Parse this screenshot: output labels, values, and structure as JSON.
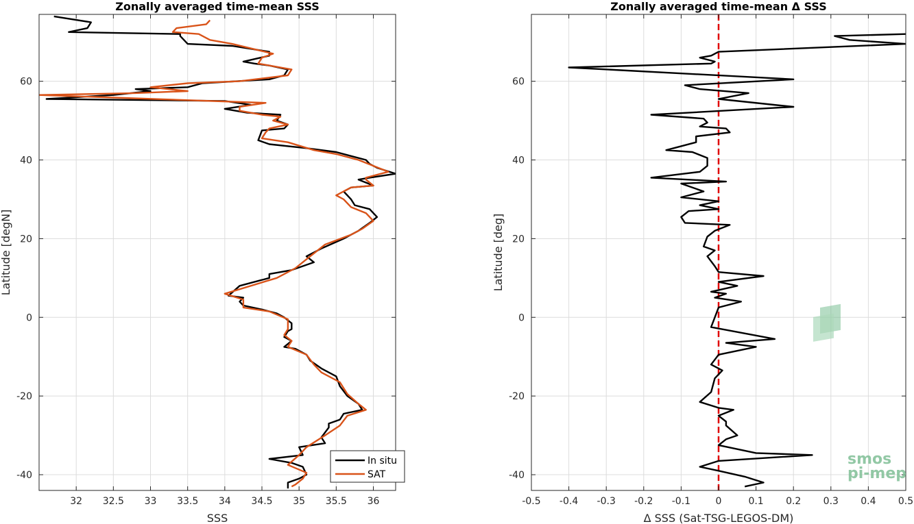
{
  "chart_data": [
    {
      "type": "line",
      "title": "Zonally averaged time-mean SSS",
      "xlabel": "SSS",
      "ylabel": "Latitude [degN]",
      "xlim": [
        31.5,
        36.3
      ],
      "ylim": [
        -44,
        77
      ],
      "xticks": [
        32,
        32.5,
        33,
        33.5,
        34,
        34.5,
        35,
        35.5,
        36
      ],
      "xtick_labels": [
        "32",
        "32.5",
        "33",
        "33.5",
        "34",
        "34.5",
        "35",
        "35.5",
        "36"
      ],
      "yticks": [
        -40,
        -20,
        0,
        20,
        40,
        60
      ],
      "ytick_labels": [
        "-40",
        "-20",
        "0",
        "20",
        "40",
        "60"
      ],
      "grid": true,
      "legend_position": "bottom-right",
      "series": [
        {
          "name": "In situ",
          "color": "#000000",
          "points": [
            [
              31.7,
              76.5
            ],
            [
              32.2,
              75
            ],
            [
              32.15,
              73.5
            ],
            [
              31.9,
              72.5
            ],
            [
              33.4,
              72
            ],
            [
              33.4,
              71.5
            ],
            [
              33.5,
              69.5
            ],
            [
              34.1,
              69
            ],
            [
              34.6,
              67.5
            ],
            [
              34.6,
              66.5
            ],
            [
              34.25,
              65
            ],
            [
              34.4,
              64.5
            ],
            [
              34.6,
              64
            ],
            [
              34.85,
              63
            ],
            [
              34.8,
              61.5
            ],
            [
              34.6,
              60.5
            ],
            [
              33.7,
              59.5
            ],
            [
              33.5,
              58.5
            ],
            [
              32.8,
              58
            ],
            [
              33,
              57.5
            ],
            [
              32.5,
              56.5
            ],
            [
              31.6,
              55.5
            ],
            [
              34.0,
              55
            ],
            [
              34.35,
              54
            ],
            [
              34.0,
              53
            ],
            [
              34.3,
              52
            ],
            [
              34.75,
              51.5
            ],
            [
              34.7,
              50
            ],
            [
              34.85,
              49
            ],
            [
              34.8,
              48
            ],
            [
              34.5,
              47.5
            ],
            [
              34.45,
              45
            ],
            [
              34.6,
              44
            ],
            [
              35.1,
              43
            ],
            [
              35.5,
              42
            ],
            [
              35.7,
              41
            ],
            [
              35.9,
              40
            ],
            [
              35.95,
              39
            ],
            [
              36.05,
              38
            ],
            [
              36.3,
              36.5
            ],
            [
              35.95,
              35.5
            ],
            [
              35.8,
              35
            ],
            [
              36.0,
              33.5
            ],
            [
              35.7,
              33
            ],
            [
              35.6,
              32
            ],
            [
              35.7,
              30
            ],
            [
              35.75,
              28.5
            ],
            [
              35.95,
              27.5
            ],
            [
              36.05,
              25.5
            ],
            [
              35.95,
              24
            ],
            [
              35.8,
              22
            ],
            [
              35.6,
              20
            ],
            [
              35.3,
              17.5
            ],
            [
              35.1,
              15.5
            ],
            [
              35.2,
              14
            ],
            [
              34.9,
              12
            ],
            [
              34.6,
              11
            ],
            [
              34.6,
              10
            ],
            [
              34.2,
              8
            ],
            [
              34.05,
              5.5
            ],
            [
              34.25,
              5
            ],
            [
              34.2,
              4
            ],
            [
              34.25,
              3
            ],
            [
              34.5,
              2
            ],
            [
              34.7,
              1
            ],
            [
              34.8,
              0
            ],
            [
              34.9,
              -1.5
            ],
            [
              34.9,
              -3
            ],
            [
              34.85,
              -3.5
            ],
            [
              34.8,
              -5
            ],
            [
              34.9,
              -6
            ],
            [
              34.8,
              -7.5
            ],
            [
              34.95,
              -8
            ],
            [
              35.1,
              -9.5
            ],
            [
              35.15,
              -11
            ],
            [
              35.3,
              -13
            ],
            [
              35.5,
              -15
            ],
            [
              35.55,
              -17.5
            ],
            [
              35.65,
              -20
            ],
            [
              35.8,
              -22
            ],
            [
              35.85,
              -23.5
            ],
            [
              35.6,
              -24.5
            ],
            [
              35.55,
              -26
            ],
            [
              35.4,
              -27
            ],
            [
              35.4,
              -28
            ],
            [
              35.3,
              -30.5
            ],
            [
              35.35,
              -32
            ],
            [
              35.0,
              -33
            ],
            [
              35.05,
              -35
            ],
            [
              34.6,
              -36
            ],
            [
              34.9,
              -37
            ],
            [
              35.05,
              -38
            ],
            [
              35.1,
              -40
            ],
            [
              35.0,
              -41
            ],
            [
              34.85,
              -42
            ],
            [
              34.85,
              -43.5
            ]
          ]
        },
        {
          "name": "SAT",
          "color": "#d95319",
          "points": [
            [
              33.8,
              75.5
            ],
            [
              33.75,
              74.5
            ],
            [
              33.35,
              73.5
            ],
            [
              33.3,
              72.5
            ],
            [
              33.65,
              72
            ],
            [
              33.8,
              70.5
            ],
            [
              34.1,
              69.5
            ],
            [
              34.65,
              67
            ],
            [
              34.5,
              66
            ],
            [
              34.45,
              64.5
            ],
            [
              34.9,
              63
            ],
            [
              34.85,
              61.5
            ],
            [
              34.2,
              60
            ],
            [
              33.5,
              59.5
            ],
            [
              33.0,
              58.5
            ],
            [
              33.5,
              57.5
            ],
            [
              32.8,
              57
            ],
            [
              31.5,
              56.5
            ],
            [
              34.55,
              54.5
            ],
            [
              34.2,
              53.5
            ],
            [
              34.2,
              52.5
            ],
            [
              34.5,
              51.5
            ],
            [
              34.75,
              51
            ],
            [
              34.65,
              50
            ],
            [
              34.85,
              49
            ],
            [
              34.6,
              48
            ],
            [
              34.55,
              47
            ],
            [
              34.5,
              45.5
            ],
            [
              34.85,
              44.5
            ],
            [
              35.2,
              42.5
            ],
            [
              35.5,
              41.5
            ],
            [
              35.8,
              40
            ],
            [
              36.0,
              38.5
            ],
            [
              36.2,
              37
            ],
            [
              35.9,
              35.5
            ],
            [
              35.9,
              35
            ],
            [
              36.0,
              33.5
            ],
            [
              35.7,
              33
            ],
            [
              35.5,
              31
            ],
            [
              35.6,
              30
            ],
            [
              35.7,
              28
            ],
            [
              35.9,
              26.5
            ],
            [
              36.0,
              24.5
            ],
            [
              35.85,
              22.5
            ],
            [
              35.7,
              21
            ],
            [
              35.35,
              18.5
            ],
            [
              35.15,
              15.5
            ],
            [
              34.95,
              12.5
            ],
            [
              34.7,
              10
            ],
            [
              34.0,
              6
            ],
            [
              34.25,
              4.5
            ],
            [
              34.25,
              2.5
            ],
            [
              34.6,
              1.5
            ],
            [
              34.85,
              -0.5
            ],
            [
              34.85,
              -3
            ],
            [
              34.8,
              -4.5
            ],
            [
              34.9,
              -6
            ],
            [
              34.85,
              -7.5
            ],
            [
              35.1,
              -9.5
            ],
            [
              35.2,
              -12
            ],
            [
              35.3,
              -14
            ],
            [
              35.55,
              -16.5
            ],
            [
              35.65,
              -19.5
            ],
            [
              35.8,
              -22
            ],
            [
              35.9,
              -23.5
            ],
            [
              35.65,
              -25
            ],
            [
              35.55,
              -27.5
            ],
            [
              35.35,
              -30
            ],
            [
              35.1,
              -33
            ],
            [
              35.0,
              -35
            ],
            [
              34.85,
              -37.5
            ],
            [
              35.1,
              -39.5
            ],
            [
              35.05,
              -41
            ],
            [
              34.95,
              -42.5
            ],
            [
              34.9,
              -43
            ]
          ]
        }
      ]
    },
    {
      "type": "line",
      "title": "Zonally averaged time-mean Δ SSS",
      "xlabel": "Δ SSS (Sat-TSG-LEGOS-DM)",
      "ylabel": "Latitude [deg]",
      "xlim": [
        -0.5,
        0.5
      ],
      "ylim": [
        -44,
        77
      ],
      "xticks": [
        -0.5,
        -0.4,
        -0.3,
        -0.2,
        -0.1,
        0,
        0.1,
        0.2,
        0.3,
        0.4,
        0.5
      ],
      "xtick_labels": [
        "-0.5",
        "-0.4",
        "-0.3",
        "-0.2",
        "-0.1",
        "0",
        "0.1",
        "0.2",
        "0.3",
        "0.4",
        "0.5"
      ],
      "yticks": [
        -40,
        -20,
        0,
        20,
        40,
        60
      ],
      "ytick_labels": [
        "-40",
        "-20",
        "0",
        "20",
        "40",
        "60"
      ],
      "grid": true,
      "reference_line": {
        "x": 0,
        "color": "#e00000",
        "style": "dashed"
      },
      "series": [
        {
          "color": "#000000",
          "points": [
            [
              0.5,
              72
            ],
            [
              0.31,
              71.5
            ],
            [
              0.35,
              70.5
            ],
            [
              0.5,
              69.5
            ],
            [
              0.0,
              67.5
            ],
            [
              -0.02,
              66.5
            ],
            [
              -0.05,
              66
            ],
            [
              -0.01,
              65
            ],
            [
              -0.02,
              64.5
            ],
            [
              -0.4,
              63.5
            ],
            [
              0.2,
              60.5
            ],
            [
              -0.09,
              59
            ],
            [
              -0.05,
              58
            ],
            [
              0.08,
              57
            ],
            [
              0.0,
              55.5
            ],
            [
              0.2,
              53.5
            ],
            [
              -0.18,
              51.5
            ],
            [
              -0.04,
              50.5
            ],
            [
              -0.03,
              49.5
            ],
            [
              -0.05,
              48.5
            ],
            [
              0.02,
              48
            ],
            [
              0.03,
              47
            ],
            [
              -0.06,
              46
            ],
            [
              -0.06,
              44.5
            ],
            [
              -0.14,
              42.5
            ],
            [
              -0.07,
              42
            ],
            [
              -0.03,
              40.5
            ],
            [
              -0.03,
              38.5
            ],
            [
              -0.05,
              37
            ],
            [
              -0.18,
              35.5
            ],
            [
              0.02,
              34.5
            ],
            [
              -0.1,
              34
            ],
            [
              -0.04,
              32
            ],
            [
              -0.1,
              30.5
            ],
            [
              0.0,
              29.5
            ],
            [
              -0.05,
              28.5
            ],
            [
              0.0,
              27.5
            ],
            [
              -0.08,
              27
            ],
            [
              -0.1,
              25.5
            ],
            [
              -0.09,
              24
            ],
            [
              0.03,
              23.5
            ],
            [
              -0.01,
              22
            ],
            [
              -0.03,
              20.5
            ],
            [
              -0.04,
              18
            ],
            [
              -0.01,
              17
            ],
            [
              -0.03,
              15.5
            ],
            [
              -0.01,
              13
            ],
            [
              0.0,
              11.5
            ],
            [
              0.12,
              10.5
            ],
            [
              0.0,
              9
            ],
            [
              0.05,
              8
            ],
            [
              -0.02,
              6.5
            ],
            [
              0.02,
              6
            ],
            [
              -0.01,
              5
            ],
            [
              0.06,
              4
            ],
            [
              0.0,
              2.5
            ],
            [
              -0.02,
              -2.5
            ],
            [
              0.15,
              -5.5
            ],
            [
              0.02,
              -6.5
            ],
            [
              0.1,
              -7.5
            ],
            [
              0.0,
              -9.5
            ],
            [
              -0.02,
              -12
            ],
            [
              0.01,
              -13.5
            ],
            [
              -0.01,
              -15.5
            ],
            [
              -0.02,
              -19
            ],
            [
              -0.05,
              -21.5
            ],
            [
              0.0,
              -23
            ],
            [
              0.04,
              -23.5
            ],
            [
              0.0,
              -25
            ],
            [
              0.02,
              -26.5
            ],
            [
              0.02,
              -27.5
            ],
            [
              0.05,
              -30
            ],
            [
              0.02,
              -31
            ],
            [
              0.0,
              -32.5
            ],
            [
              0.05,
              -33.5
            ],
            [
              0.1,
              -34.5
            ],
            [
              0.25,
              -35
            ],
            [
              0.0,
              -36.5
            ],
            [
              -0.05,
              -38
            ],
            [
              0.0,
              -39
            ],
            [
              0.07,
              -40.5
            ],
            [
              0.12,
              -42
            ],
            [
              0.07,
              -43
            ]
          ]
        }
      ]
    }
  ],
  "logo": {
    "line1": "smos",
    "line2": "pi-mep"
  }
}
